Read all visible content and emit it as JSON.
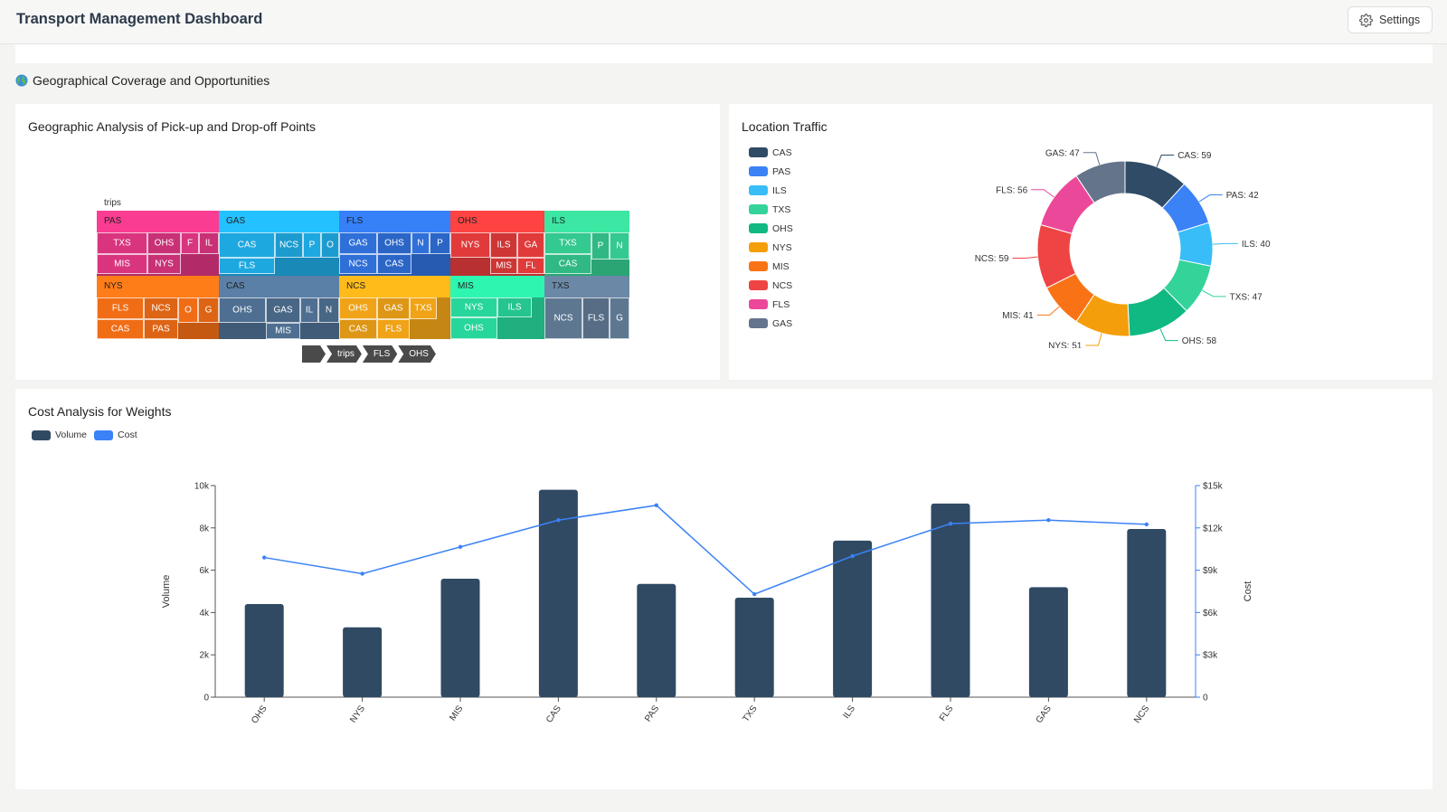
{
  "header": {
    "title": "Transport Management Dashboard",
    "settings_label": "Settings"
  },
  "section": {
    "title": "Geographical Coverage and Opportunities",
    "icon": "globe-icon"
  },
  "treemap": {
    "title": "Geographic Analysis of Pick-up and Drop-off Points",
    "root_label": "trips",
    "breadcrumb": [
      "",
      "trips",
      "FLS",
      "OHS"
    ],
    "groups": [
      {
        "name": "PAS",
        "color": "#d9357f",
        "children": [
          "TXS",
          "OHS",
          "F",
          "IL",
          "MIS",
          "NYS"
        ]
      },
      {
        "name": "GAS",
        "color": "#1ea8e0",
        "children": [
          "CAS",
          "NCS",
          "P",
          "O",
          "FLS"
        ]
      },
      {
        "name": "FLS",
        "color": "#2f6fd8",
        "children": [
          "GAS",
          "OHS",
          "N",
          "P",
          "NCS",
          "CAS"
        ]
      },
      {
        "name": "OHS",
        "color": "#e03a3a",
        "children": [
          "NYS",
          "ILS",
          "GA",
          "MIS",
          "FL"
        ]
      },
      {
        "name": "ILS",
        "color": "#34c98e",
        "children": [
          "TXS",
          "P",
          "N",
          "CAS"
        ]
      },
      {
        "name": "NYS",
        "color": "#f06d16",
        "children": [
          "FLS",
          "NCS",
          "O",
          "G",
          "CAS",
          "PAS"
        ]
      },
      {
        "name": "CAS",
        "color": "#4e6f91",
        "children": [
          "OHS",
          "GAS",
          "IL",
          "N",
          "MIS"
        ]
      },
      {
        "name": "NCS",
        "color": "#f0a317",
        "children": [
          "OHS",
          "GAS",
          "TXS",
          "CAS",
          "FLS"
        ]
      },
      {
        "name": "MIS",
        "color": "#27d69a",
        "children": [
          "NYS",
          "ILS",
          "OHS"
        ]
      },
      {
        "name": "TXS",
        "color": "#5d7791",
        "children": [
          "NCS",
          "FLS",
          "G"
        ]
      }
    ]
  },
  "donut": {
    "title": "Location Traffic",
    "items": [
      {
        "name": "CAS",
        "value": 59,
        "label": "CAS: 59",
        "color": "#2f4b66"
      },
      {
        "name": "PAS",
        "value": 42,
        "label": "PAS: 42",
        "color": "#3b82f6"
      },
      {
        "name": "ILS",
        "value": 40,
        "label": "ILS: 40",
        "color": "#38bdf8"
      },
      {
        "name": "TXS",
        "value": 47,
        "label": "TXS: 47",
        "color": "#34d399"
      },
      {
        "name": "OHS",
        "value": 58,
        "label": "OHS: 58",
        "color": "#10b981"
      },
      {
        "name": "NYS",
        "value": 51,
        "label": "NYS: 51",
        "color": "#f59e0b"
      },
      {
        "name": "MIS",
        "value": 41,
        "label": "MIS: 41",
        "color": "#f97316"
      },
      {
        "name": "NCS",
        "value": 59,
        "label": "NCS: 59",
        "color": "#ef4444"
      },
      {
        "name": "FLS",
        "value": 56,
        "label": "FLS: 56",
        "color": "#ec4899"
      },
      {
        "name": "GAS",
        "value": 47,
        "label": "GAS: 47",
        "color": "#64748b"
      }
    ]
  },
  "cost_chart": {
    "title": "Cost Analysis for Weights",
    "legend": [
      {
        "name": "Volume",
        "color": "#304a63"
      },
      {
        "name": "Cost",
        "color": "#3b82f6"
      }
    ],
    "y_left_label": "Volume",
    "y_right_label": "Cost",
    "y_left_ticks": [
      "0",
      "2k",
      "4k",
      "6k",
      "8k",
      "10k"
    ],
    "y_right_ticks": [
      "0",
      "$3k",
      "$6k",
      "$9k",
      "$12k",
      "$15k"
    ]
  },
  "chart_data": {
    "type": "bar",
    "categories": [
      "OHS",
      "NYS",
      "MIS",
      "CAS",
      "PAS",
      "TXS",
      "ILS",
      "FLS",
      "GAS",
      "NCS"
    ],
    "series": [
      {
        "name": "Volume",
        "type": "bar",
        "axis": "left",
        "values": [
          4400,
          3300,
          5600,
          9800,
          5350,
          4700,
          7400,
          9150,
          5200,
          7950
        ]
      },
      {
        "name": "Cost",
        "type": "line",
        "axis": "right",
        "values": [
          9900,
          8750,
          10650,
          12550,
          13600,
          7300,
          10000,
          12300,
          12550,
          12250
        ]
      }
    ],
    "title": "Cost Analysis for Weights",
    "xlabel": "",
    "ylabel": "Volume",
    "y2label": "Cost",
    "ylim": [
      0,
      10000
    ],
    "y2lim": [
      0,
      15000
    ],
    "legend_position": "top-left"
  }
}
